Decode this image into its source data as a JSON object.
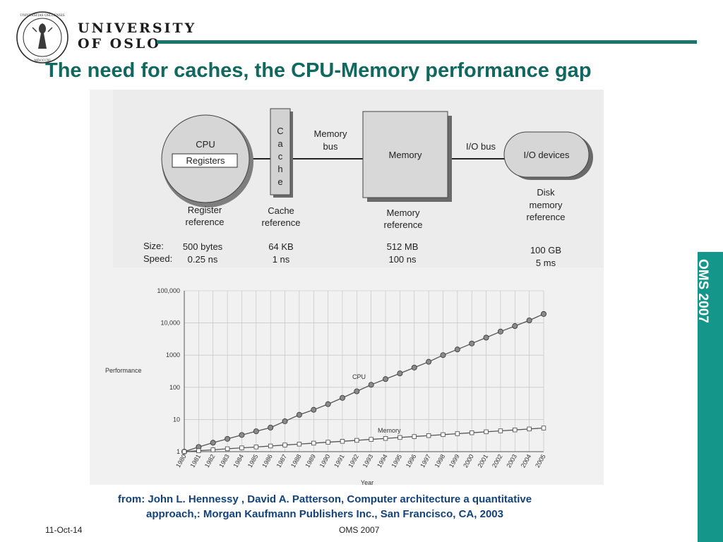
{
  "header": {
    "logo_line1": "UNIVERSITY",
    "logo_line2": "OF OSLO",
    "accent_color": "#19766e"
  },
  "title": "The need for caches, the CPU-Memory performance gap",
  "sidebar": {
    "label": "OMS 2007",
    "color": "#15968a"
  },
  "hierarchy": {
    "cpu": {
      "label": "CPU",
      "registers": "Registers",
      "ref": [
        "Register",
        "reference"
      ]
    },
    "cache": {
      "letters": [
        "C",
        "a",
        "c",
        "h",
        "e"
      ],
      "ref": [
        "Cache",
        "reference"
      ]
    },
    "memory_bus": [
      "Memory",
      "bus"
    ],
    "memory": {
      "label": "Memory",
      "ref": [
        "Memory",
        "reference"
      ]
    },
    "io_bus": "I/O bus",
    "io": {
      "label": "I/O devices",
      "ref": [
        "Disk",
        "memory",
        "reference"
      ]
    },
    "size_label": "Size:",
    "speed_label": "Speed:",
    "levels": [
      {
        "size": "500 bytes",
        "speed": "0.25 ns"
      },
      {
        "size": "64 KB",
        "speed": "1 ns"
      },
      {
        "size": "512 MB",
        "speed": "100 ns"
      },
      {
        "size": "100 GB",
        "speed": "5 ms"
      }
    ]
  },
  "chart_data": {
    "type": "line",
    "xlabel": "Year",
    "ylabel": "Performance",
    "yscale": "log",
    "ylim": [
      1,
      100000
    ],
    "y_ticks": [
      "1",
      "10",
      "100",
      "1000",
      "10,000",
      "100,000"
    ],
    "x": [
      1980,
      1981,
      1982,
      1983,
      1984,
      1985,
      1986,
      1987,
      1988,
      1989,
      1990,
      1991,
      1992,
      1993,
      1994,
      1995,
      1996,
      1997,
      1998,
      1999,
      2000,
      2001,
      2002,
      2003,
      2004,
      2005
    ],
    "series": [
      {
        "name": "CPU",
        "values": [
          1,
          1.4,
          1.9,
          2.5,
          3.3,
          4.3,
          5.6,
          8.8,
          14,
          20,
          30,
          47,
          75,
          120,
          180,
          270,
          410,
          620,
          1000,
          1500,
          2300,
          3500,
          5400,
          8000,
          12000,
          19000
        ]
      },
      {
        "name": "Memory",
        "values": [
          1,
          1.07,
          1.14,
          1.23,
          1.31,
          1.4,
          1.5,
          1.61,
          1.72,
          1.84,
          1.97,
          2.1,
          2.25,
          2.41,
          2.58,
          2.76,
          2.95,
          3.16,
          3.38,
          3.62,
          3.87,
          4.14,
          4.43,
          4.74,
          5.07,
          5.43
        ]
      }
    ]
  },
  "caption": {
    "line1": "from:  John L. Hennessy , David A. Patterson, Computer architecture  a quantitative",
    "line2": "approach,: Morgan Kaufmann Publishers Inc., San Francisco, CA, 2003"
  },
  "footer": {
    "date": "11-Oct-14",
    "center": "OMS 2007"
  }
}
